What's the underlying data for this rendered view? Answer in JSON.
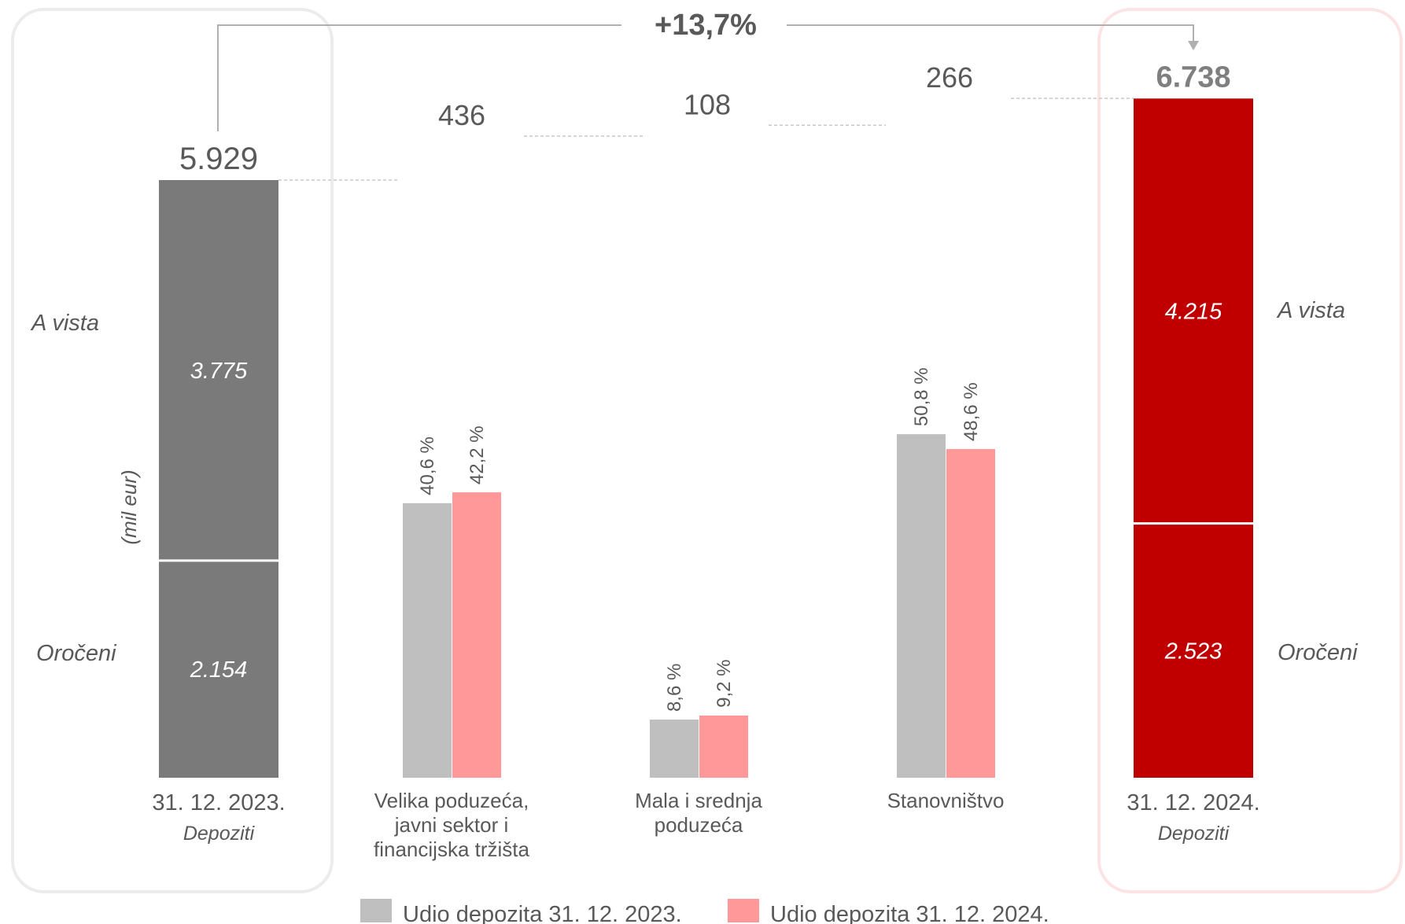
{
  "chart_data": {
    "type": "bar",
    "unit_label": "(mil eur)",
    "growth_label": "+13,7%",
    "start": {
      "date": "31. 12. 2023.",
      "subtitle": "Depoziti",
      "total": 5929,
      "total_label": "5.929",
      "segments": [
        {
          "name": "Oročeni",
          "value": 2154,
          "label": "2.154"
        },
        {
          "name": "A vista",
          "value": 3775,
          "label": "3.775"
        }
      ],
      "color": "#7a7a7a"
    },
    "end": {
      "date": "31. 12. 2024.",
      "subtitle": "Depoziti",
      "total": 6738,
      "total_label": "6.738",
      "segments": [
        {
          "name": "Oročeni",
          "value": 2523,
          "label": "2.523"
        },
        {
          "name": "A vista",
          "value": 4215,
          "label": "4.215"
        }
      ],
      "color": "#c00000"
    },
    "side_labels": {
      "a_vista": "A vista",
      "oroceni": "Oročeni"
    },
    "increments": [
      {
        "label": "436",
        "value": 436
      },
      {
        "label": "108",
        "value": 108
      },
      {
        "label": "266",
        "value": 266
      }
    ],
    "categories": [
      "Velika poduzeća, javni sektor i financijska tržišta",
      "Mala i srednja poduzeća",
      "Stanovništvo"
    ],
    "category_lines": [
      [
        "Velika poduzeća,",
        "javni sektor i",
        "financijska tržišta"
      ],
      [
        "Mala i srednja",
        "poduzeća"
      ],
      [
        "Stanovništvo"
      ]
    ],
    "series": [
      {
        "name": "Udio depozita 31. 12. 2023.",
        "color": "#bfbfbf",
        "values": [
          40.6,
          8.6,
          50.8
        ],
        "labels": [
          "40,6 %",
          "8,6 %",
          "50,8 %"
        ]
      },
      {
        "name": "Udio depozita 31. 12. 2024.",
        "color": "#ff9999",
        "values": [
          42.2,
          9.2,
          48.6
        ],
        "labels": [
          "42,2 %",
          "9,2 %",
          "48,6 %"
        ]
      }
    ],
    "grid": false,
    "legend_position": "bottom"
  }
}
